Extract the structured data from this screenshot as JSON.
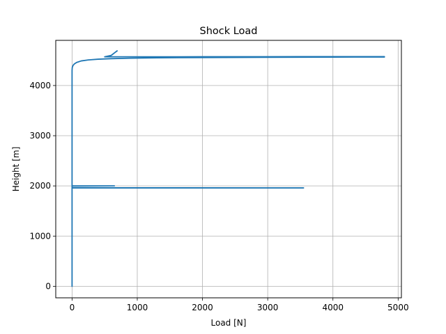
{
  "chart_data": {
    "type": "line",
    "title": "Shock Load",
    "xlabel": "Load [N]",
    "ylabel": "Height [m]",
    "xlim": [
      -250,
      5050
    ],
    "ylim": [
      -230,
      4900
    ],
    "xticks": [
      0,
      1000,
      2000,
      3000,
      4000,
      5000
    ],
    "yticks": [
      0,
      1000,
      2000,
      3000,
      4000
    ],
    "xtick_labels": [
      "0",
      "1000",
      "2000",
      "3000",
      "4000",
      "5000"
    ],
    "ytick_labels": [
      "0",
      "1000",
      "2000",
      "3000",
      "4000"
    ],
    "grid": true,
    "color": "#1f77b4",
    "series": [
      {
        "points": [
          [
            0,
            0
          ],
          [
            0,
            1960
          ],
          [
            3550,
            1960
          ],
          [
            0,
            1963
          ],
          [
            0,
            2000
          ],
          [
            650,
            2000
          ],
          [
            60,
            1995
          ],
          [
            0,
            1995
          ],
          [
            0,
            4300
          ],
          [
            3,
            4360
          ],
          [
            15,
            4400
          ],
          [
            35,
            4430
          ],
          [
            70,
            4460
          ],
          [
            140,
            4490
          ],
          [
            250,
            4510
          ],
          [
            400,
            4525
          ],
          [
            600,
            4535
          ],
          [
            900,
            4545
          ],
          [
            1300,
            4552
          ],
          [
            2000,
            4558
          ],
          [
            3000,
            4563
          ],
          [
            4000,
            4566
          ],
          [
            4790,
            4568
          ],
          [
            4790,
            4575
          ],
          [
            3500,
            4575
          ],
          [
            2000,
            4573
          ],
          [
            1000,
            4572
          ],
          [
            500,
            4572
          ],
          [
            600,
            4600
          ],
          [
            660,
            4660
          ],
          [
            690,
            4690
          ]
        ]
      }
    ]
  }
}
